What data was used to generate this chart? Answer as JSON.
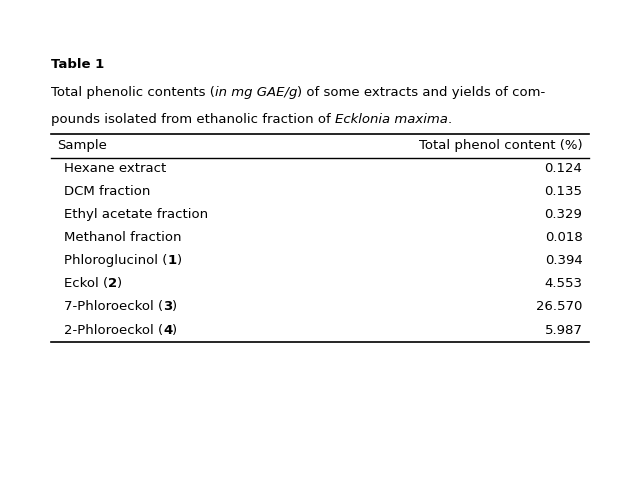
{
  "table_number": "Table 1",
  "caption_normal": "Total phenolic contents (",
  "caption_italic1": "in mg GAE/g",
  "caption_normal2": ") of some extracts and yields of compounds isolated from ethanolic fraction of ",
  "caption_italic2": "Ecklonia maxima",
  "caption_end": ".",
  "col_headers": [
    "Sample",
    "Total phenol content (%)"
  ],
  "rows": [
    [
      "Hexane extract",
      "0.124"
    ],
    [
      "DCM fraction",
      "0.135"
    ],
    [
      "Ethyl acetate fraction",
      "0.329"
    ],
    [
      "Methanol fraction",
      "0.018"
    ],
    [
      "Phloroglucinol (",
      "1",
      ")",
      "0.394"
    ],
    [
      "Eckol (",
      "2",
      ")",
      "4.553"
    ],
    [
      "7-Phloroeckol (",
      "3",
      ")",
      "26.570"
    ],
    [
      "2-Phloroeckol (",
      "4",
      ")",
      "5.987"
    ]
  ],
  "simple_rows": [
    [
      "Hexane extract",
      "0.124"
    ],
    [
      "DCM fraction",
      "0.135"
    ],
    [
      "Ethyl acetate fraction",
      "0.329"
    ],
    [
      "Methanol fraction",
      "0.018"
    ],
    [
      "Phloroglucinol (1)",
      "0.394"
    ],
    [
      "Eckol (2)",
      "4.553"
    ],
    [
      "7-Phloroeckol (3)",
      "26.570"
    ],
    [
      "2-Phloroeckol (4)",
      "5.987"
    ]
  ],
  "bold_numbers": [
    "1",
    "2",
    "3",
    "4"
  ],
  "background_color": "#ffffff",
  "text_color": "#000000",
  "title_color": "#000000",
  "header_line_color": "#000000",
  "font_size": 9.5,
  "header_font_size": 9.5,
  "caption_font_size": 9.5
}
